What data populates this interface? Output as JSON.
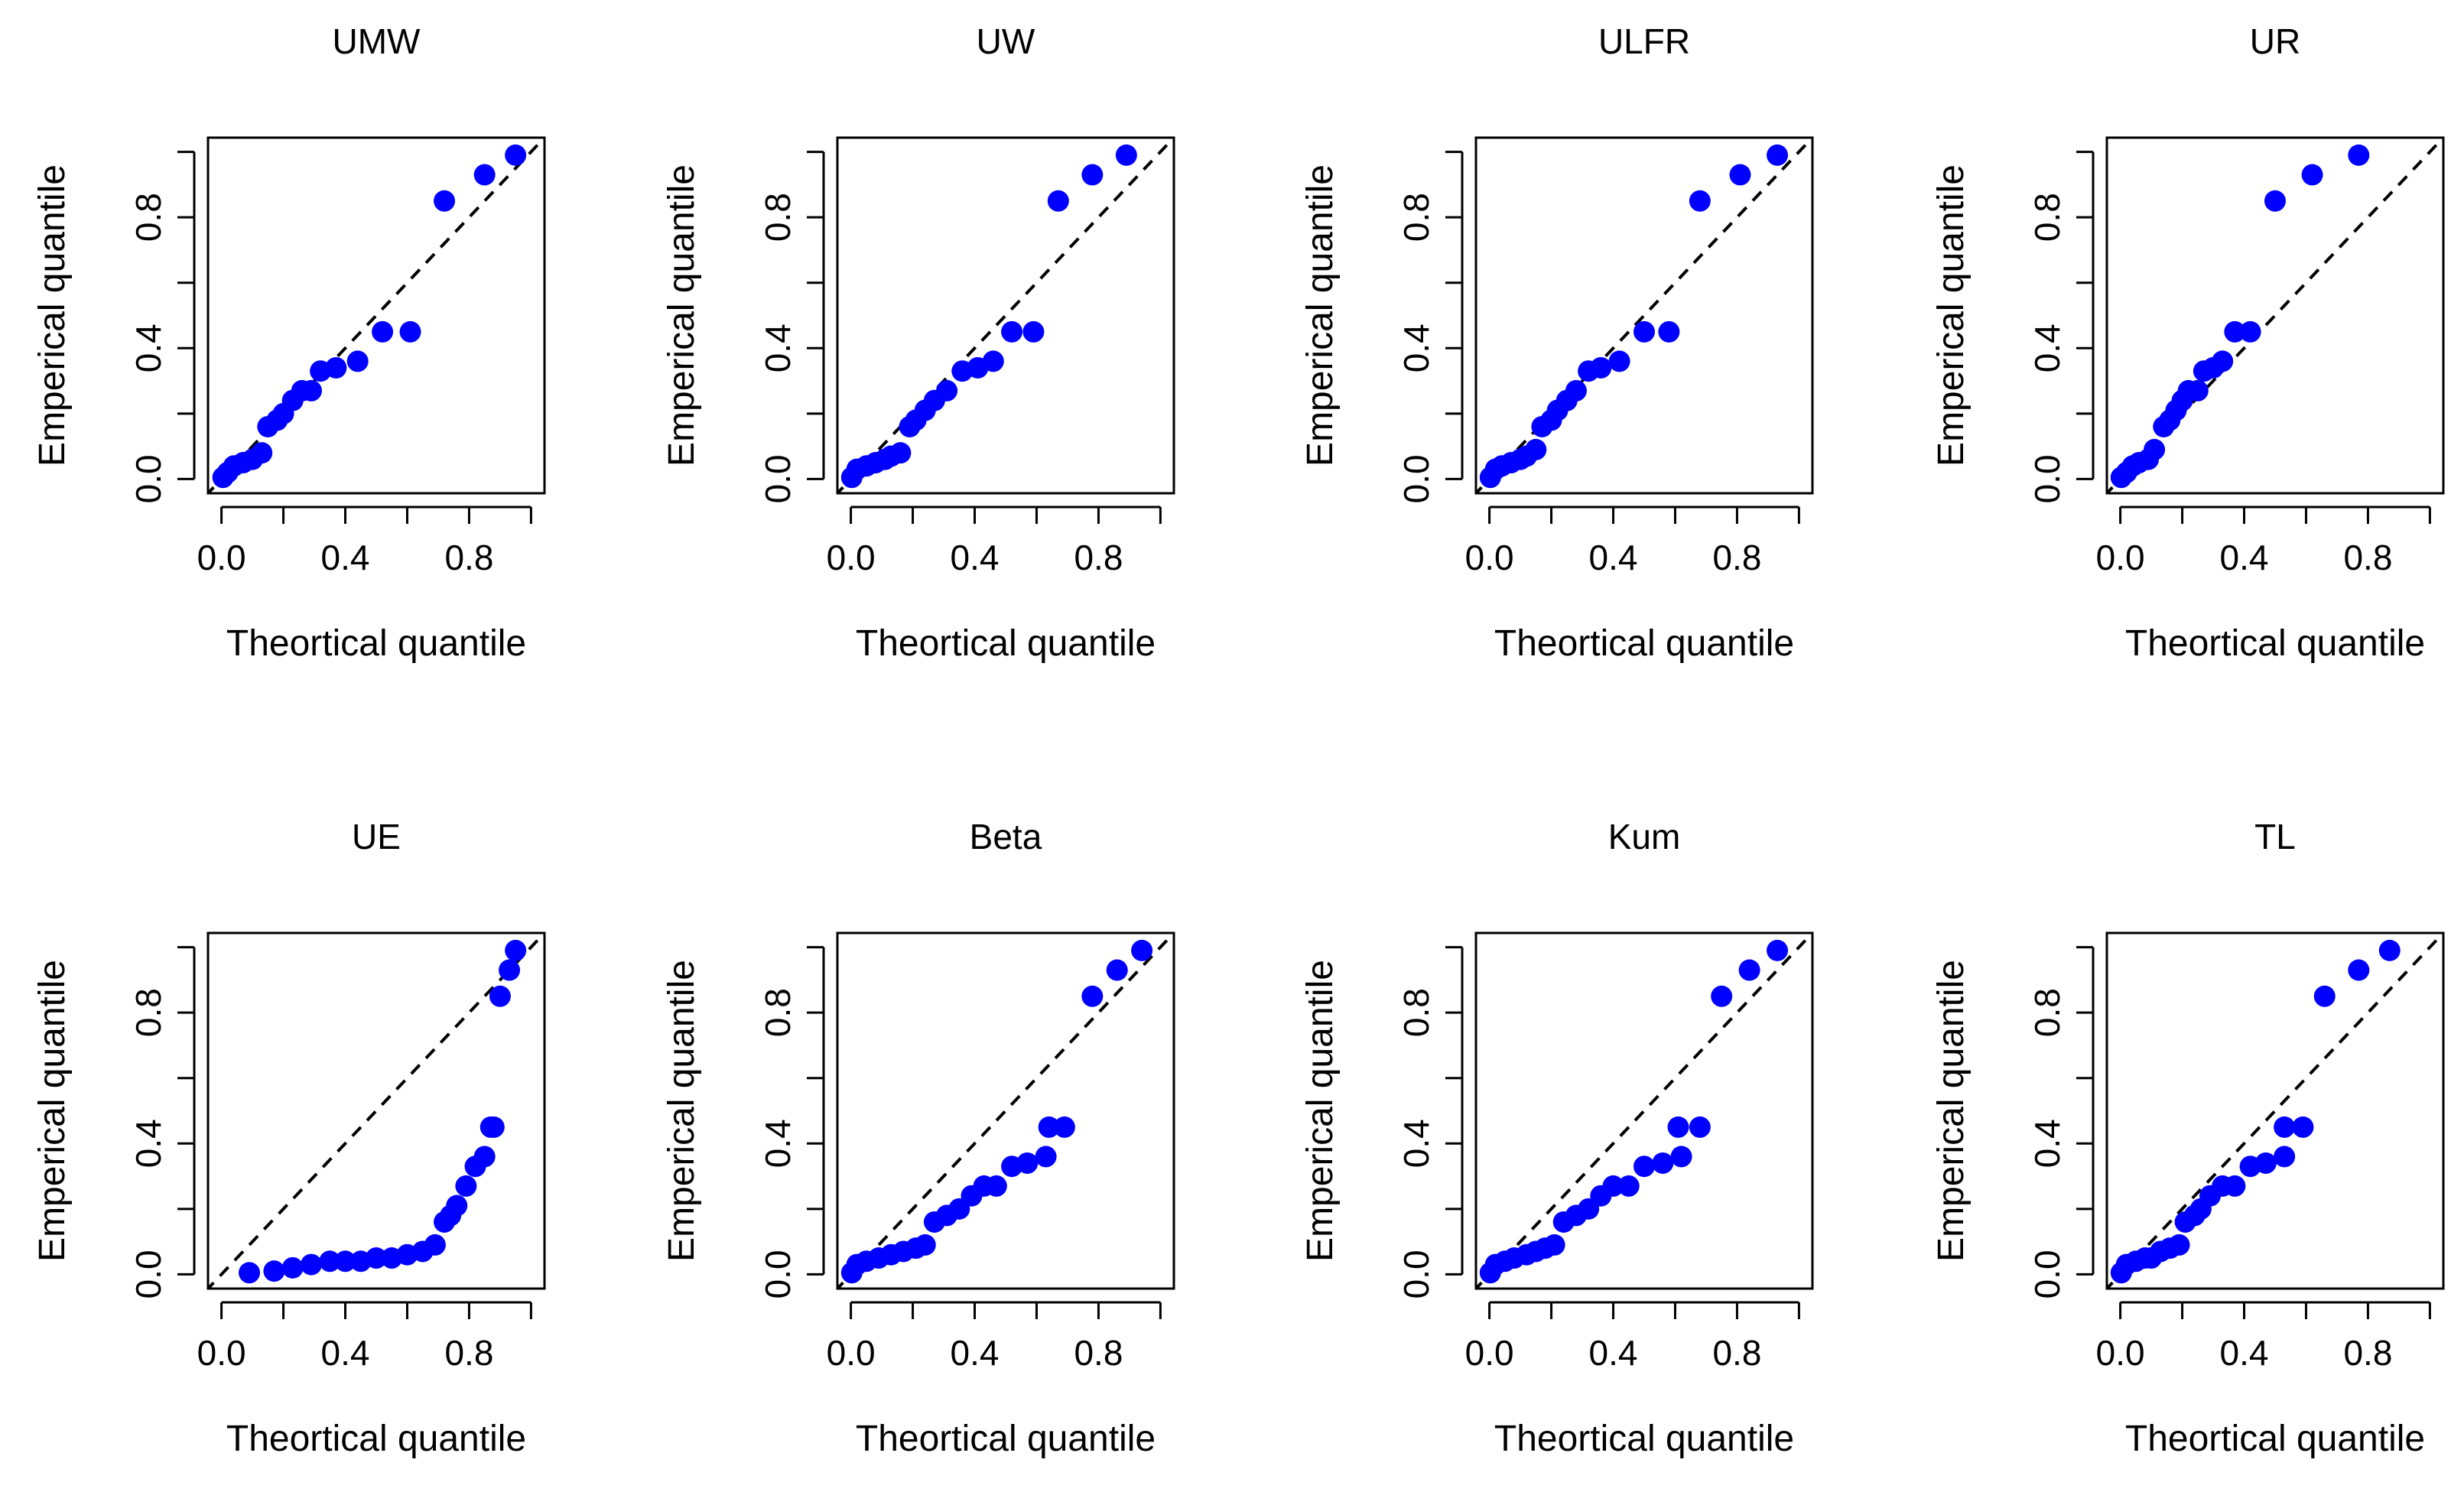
{
  "colors": {
    "points": "#0000ff",
    "reference_line": "#000000",
    "axes": "#000000"
  },
  "chart_data": [
    {
      "type": "scatter",
      "title": "UMW",
      "xlabel": "Theortical quantile",
      "ylabel": "Emperical quantile",
      "xlim": [
        0,
        1
      ],
      "ylim": [
        0,
        1
      ],
      "xticks": [
        "0.0",
        "0.4",
        "0.8"
      ],
      "yticks": [
        "0.0",
        "0.4",
        "0.8"
      ],
      "reference_line": "y = x",
      "x": [
        0.005,
        0.02,
        0.04,
        0.07,
        0.1,
        0.13,
        0.15,
        0.18,
        0.2,
        0.23,
        0.26,
        0.29,
        0.32,
        0.37,
        0.44,
        0.52,
        0.61,
        0.72,
        0.85,
        0.95
      ],
      "y": [
        0.005,
        0.02,
        0.04,
        0.05,
        0.06,
        0.08,
        0.16,
        0.18,
        0.2,
        0.24,
        0.27,
        0.27,
        0.33,
        0.34,
        0.36,
        0.45,
        0.45,
        0.85,
        0.93,
        0.99
      ]
    },
    {
      "type": "scatter",
      "title": "UW",
      "xlabel": "Theortical quantile",
      "ylabel": "Emperical quantile",
      "xlim": [
        0,
        1
      ],
      "ylim": [
        0,
        1
      ],
      "xticks": [
        "0.0",
        "0.4",
        "0.8"
      ],
      "yticks": [
        "0.0",
        "0.4",
        "0.8"
      ],
      "reference_line": "y = x",
      "x": [
        0.003,
        0.02,
        0.05,
        0.08,
        0.11,
        0.13,
        0.16,
        0.19,
        0.21,
        0.24,
        0.27,
        0.31,
        0.36,
        0.41,
        0.46,
        0.52,
        0.59,
        0.67,
        0.78,
        0.89
      ],
      "y": [
        0.005,
        0.03,
        0.04,
        0.05,
        0.06,
        0.07,
        0.08,
        0.16,
        0.18,
        0.21,
        0.24,
        0.27,
        0.33,
        0.34,
        0.36,
        0.45,
        0.45,
        0.85,
        0.93,
        0.99
      ]
    },
    {
      "type": "scatter",
      "title": "ULFR",
      "xlabel": "Theortical quantile",
      "ylabel": "Emperical quantile",
      "xlim": [
        0,
        1
      ],
      "ylim": [
        0,
        1
      ],
      "xticks": [
        "0.0",
        "0.4",
        "0.8"
      ],
      "yticks": [
        "0.0",
        "0.4",
        "0.8"
      ],
      "reference_line": "y = x",
      "x": [
        0.003,
        0.02,
        0.04,
        0.07,
        0.1,
        0.12,
        0.15,
        0.17,
        0.2,
        0.22,
        0.25,
        0.28,
        0.32,
        0.36,
        0.42,
        0.5,
        0.58,
        0.68,
        0.81,
        0.93
      ],
      "y": [
        0.005,
        0.03,
        0.04,
        0.05,
        0.06,
        0.07,
        0.09,
        0.16,
        0.18,
        0.21,
        0.24,
        0.27,
        0.33,
        0.34,
        0.36,
        0.45,
        0.45,
        0.85,
        0.93,
        0.99
      ]
    },
    {
      "type": "scatter",
      "title": "UR",
      "xlabel": "Theortical quantile",
      "ylabel": "Emperical quantile",
      "xlim": [
        0,
        1
      ],
      "ylim": [
        0,
        1
      ],
      "xticks": [
        "0.0",
        "0.4",
        "0.8"
      ],
      "yticks": [
        "0.0",
        "0.4",
        "0.8"
      ],
      "reference_line": "y = x",
      "x": [
        0.003,
        0.02,
        0.04,
        0.06,
        0.09,
        0.11,
        0.14,
        0.16,
        0.18,
        0.2,
        0.22,
        0.25,
        0.27,
        0.3,
        0.33,
        0.37,
        0.42,
        0.5,
        0.62,
        0.77
      ],
      "y": [
        0.005,
        0.02,
        0.04,
        0.05,
        0.06,
        0.09,
        0.16,
        0.18,
        0.21,
        0.24,
        0.27,
        0.27,
        0.33,
        0.34,
        0.36,
        0.45,
        0.45,
        0.85,
        0.93,
        0.99
      ]
    },
    {
      "type": "scatter",
      "title": "UE",
      "xlabel": "Theortical quantile",
      "ylabel": "Emperical quantile",
      "xlim": [
        0,
        1
      ],
      "ylim": [
        0,
        1
      ],
      "xticks": [
        "0.0",
        "0.4",
        "0.8"
      ],
      "yticks": [
        "0.0",
        "0.4",
        "0.8"
      ],
      "reference_line": "y = x",
      "x": [
        0.09,
        0.17,
        0.23,
        0.29,
        0.35,
        0.4,
        0.45,
        0.5,
        0.55,
        0.6,
        0.65,
        0.69,
        0.72,
        0.74,
        0.76,
        0.79,
        0.82,
        0.85,
        0.87,
        0.9,
        0.93
      ],
      "y": [
        0.005,
        0.01,
        0.02,
        0.03,
        0.04,
        0.04,
        0.04,
        0.05,
        0.05,
        0.06,
        0.07,
        0.09,
        0.16,
        0.18,
        0.21,
        0.27,
        0.33,
        0.36,
        0.45,
        0.85,
        0.93
      ],
      "extra_points": {
        "x": [
          0.88,
          0.95
        ],
        "y": [
          0.45,
          0.99
        ]
      }
    },
    {
      "type": "scatter",
      "title": "Beta",
      "xlabel": "Theortical quantile",
      "ylabel": "Emperical quantile",
      "xlim": [
        0,
        1
      ],
      "ylim": [
        0,
        1
      ],
      "xticks": [
        "0.0",
        "0.4",
        "0.8"
      ],
      "yticks": [
        "0.0",
        "0.4",
        "0.8"
      ],
      "reference_line": "y = x",
      "x": [
        0.003,
        0.02,
        0.05,
        0.09,
        0.13,
        0.17,
        0.21,
        0.24,
        0.27,
        0.31,
        0.35,
        0.39,
        0.43,
        0.47,
        0.52,
        0.57,
        0.63,
        0.69,
        0.78,
        0.86,
        0.94
      ],
      "y": [
        0.005,
        0.03,
        0.04,
        0.05,
        0.06,
        0.07,
        0.08,
        0.09,
        0.16,
        0.18,
        0.2,
        0.24,
        0.27,
        0.27,
        0.33,
        0.34,
        0.36,
        0.45,
        0.85,
        0.93,
        0.99
      ],
      "extra_points": {
        "x": [
          0.64
        ],
        "y": [
          0.45
        ]
      }
    },
    {
      "type": "scatter",
      "title": "Kum",
      "xlabel": "Theortical quantile",
      "ylabel": "Emperical quantile",
      "xlim": [
        0,
        1
      ],
      "ylim": [
        0,
        1
      ],
      "xticks": [
        "0.0",
        "0.4",
        "0.8"
      ],
      "yticks": [
        "0.0",
        "0.4",
        "0.8"
      ],
      "reference_line": "y = x",
      "x": [
        0.003,
        0.02,
        0.05,
        0.08,
        0.12,
        0.15,
        0.18,
        0.21,
        0.24,
        0.28,
        0.32,
        0.36,
        0.4,
        0.45,
        0.5,
        0.56,
        0.62,
        0.68,
        0.75,
        0.84,
        0.93
      ],
      "y": [
        0.005,
        0.03,
        0.04,
        0.05,
        0.06,
        0.07,
        0.08,
        0.09,
        0.16,
        0.18,
        0.2,
        0.24,
        0.27,
        0.27,
        0.33,
        0.34,
        0.36,
        0.45,
        0.85,
        0.93,
        0.99
      ],
      "extra_points": {
        "x": [
          0.61
        ],
        "y": [
          0.45
        ]
      }
    },
    {
      "type": "scatter",
      "title": "TL",
      "xlabel": "Theortical quantile",
      "ylabel": "Emperical quantile",
      "xlim": [
        0,
        1
      ],
      "ylim": [
        0,
        1
      ],
      "xticks": [
        "0.0",
        "0.4",
        "0.8"
      ],
      "yticks": [
        "0.0",
        "0.4",
        "0.8"
      ],
      "reference_line": "y = x",
      "x": [
        0.003,
        0.02,
        0.05,
        0.08,
        0.1,
        0.13,
        0.16,
        0.19,
        0.21,
        0.24,
        0.26,
        0.29,
        0.33,
        0.37,
        0.42,
        0.47,
        0.53,
        0.59,
        0.66,
        0.77,
        0.87
      ],
      "y": [
        0.005,
        0.03,
        0.04,
        0.05,
        0.05,
        0.07,
        0.08,
        0.09,
        0.16,
        0.18,
        0.2,
        0.24,
        0.27,
        0.27,
        0.33,
        0.34,
        0.36,
        0.45,
        0.85,
        0.93,
        0.99
      ],
      "extra_points": {
        "x": [
          0.53
        ],
        "y": [
          0.45
        ]
      }
    }
  ]
}
